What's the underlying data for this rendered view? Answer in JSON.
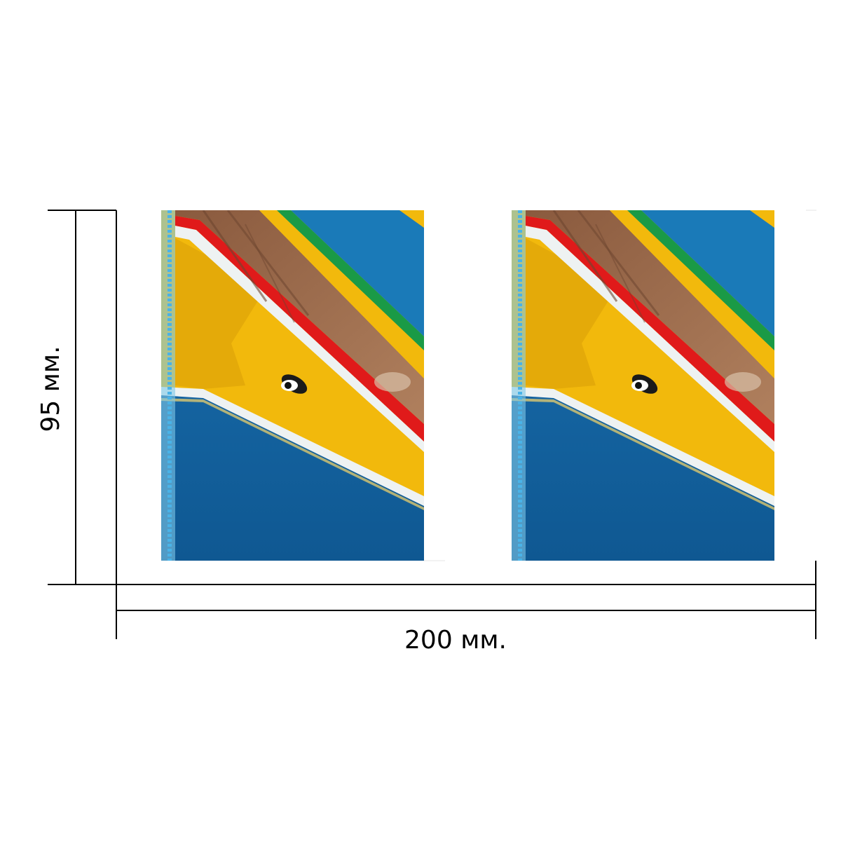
{
  "dimensions": {
    "height_label": "95 мм.",
    "width_label": "200 мм."
  },
  "panels": [
    {
      "subject": "painted-boat-hull-stripes"
    },
    {
      "subject": "painted-boat-hull-stripes"
    }
  ],
  "colors": {
    "hull_blue": "#1466a6",
    "hull_yellow": "#f2b90c",
    "stripe_red": "#e01a1a",
    "stripe_brown": "#9a6a4a",
    "stripe_green": "#1a9a46",
    "upper_blue": "#1a7ab8",
    "rope_blue": "#49b3e8",
    "stripe_white": "#eef2f2"
  }
}
